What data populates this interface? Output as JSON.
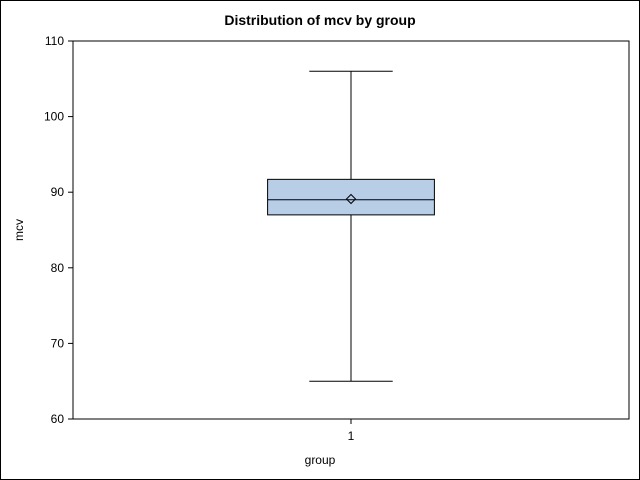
{
  "chart_data": {
    "type": "box",
    "title": "Distribution of mcv by group",
    "xlabel": "group",
    "ylabel": "mcv",
    "categories": [
      "1"
    ],
    "ylim": [
      60,
      110
    ],
    "yticks": [
      60,
      70,
      80,
      90,
      100,
      110
    ],
    "boxes": [
      {
        "category": "1",
        "min": 65,
        "q1": 87,
        "median": 89,
        "q3": 91.7,
        "max": 106,
        "mean": 89.1
      }
    ],
    "grid": false,
    "legend": "none",
    "colors": {
      "box_fill": "#b8cde6",
      "line": "#000000"
    }
  }
}
